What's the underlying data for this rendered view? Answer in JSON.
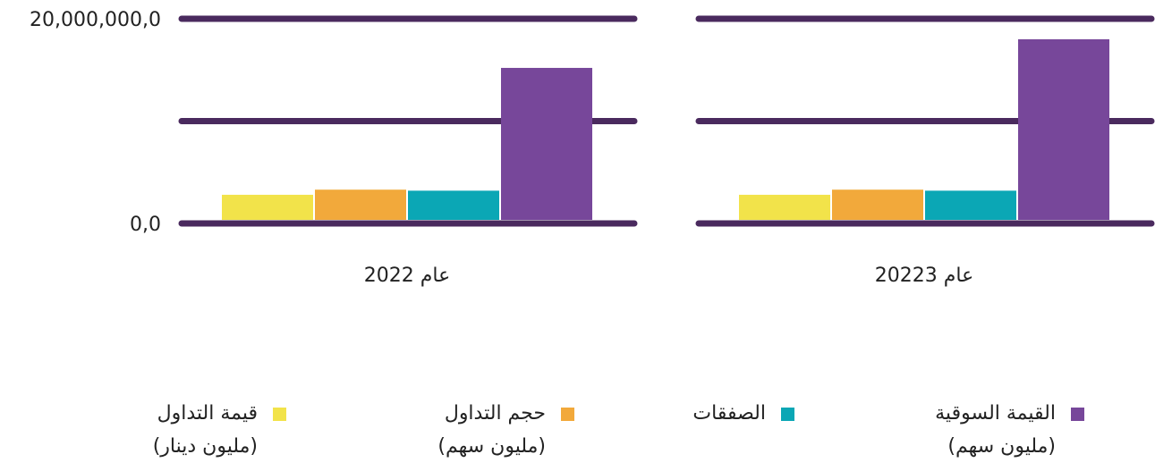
{
  "chart_data": {
    "type": "bar",
    "categories": [
      "عام 20223",
      "عام 2022"
    ],
    "series": [
      {
        "name": "القيمة السوقية",
        "unit": "(مليون سهم)",
        "color": "#77479a",
        "values": [
          18000000,
          15200000
        ]
      },
      {
        "name": "الصفقات",
        "color": "#0ba7b5",
        "values": [
          3200000,
          3200000
        ]
      },
      {
        "name": "حجم التداول",
        "unit": "(مليون سهم)",
        "color": "#f2a93b",
        "values": [
          3300000,
          3300000
        ]
      },
      {
        "name": "قيمة التداول",
        "unit": "(مليون دينار)",
        "color": "#f2e34a",
        "values": [
          2800000,
          2800000
        ]
      }
    ],
    "ylim": [
      0,
      20000000
    ],
    "yticks": [
      {
        "value": 0,
        "label": "0,0"
      },
      {
        "value": 20000000,
        "label": "20,000,000,0"
      }
    ],
    "ygrid": [
      0,
      10000000,
      20000000
    ],
    "grid_color": "#4a2a5e",
    "direction": "rtl"
  }
}
